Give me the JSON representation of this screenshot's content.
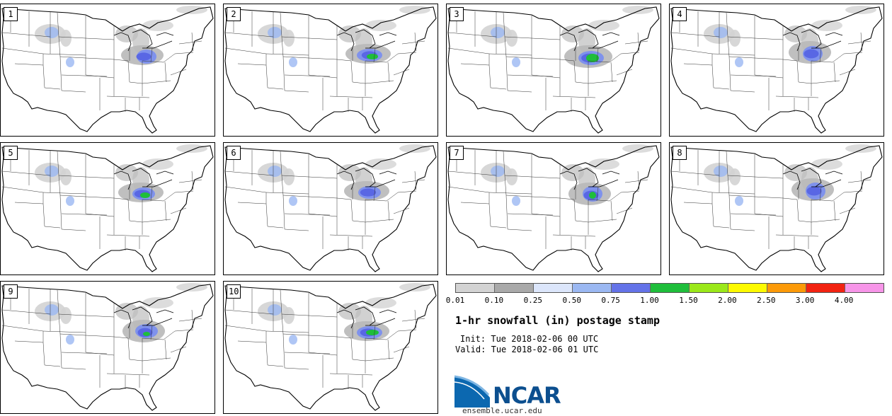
{
  "figure": {
    "title": "1-hr snowfall (in) postage stamp",
    "init_label": "Init:",
    "init_value": "Tue 2018-02-06 00 UTC",
    "valid_label": "Valid:",
    "valid_value": "Tue 2018-02-06 01 UTC",
    "organization": "NCAR",
    "url": "ensemble.ucar.edu"
  },
  "colorbar": {
    "units": "in",
    "tick_labels": [
      "0.01",
      "0.10",
      "0.25",
      "0.50",
      "0.75",
      "1.00",
      "1.50",
      "2.00",
      "2.50",
      "3.00",
      "4.00"
    ],
    "colors": [
      "#d3d3d3",
      "#a9a9a9",
      "#dce6fb",
      "#9bb8f2",
      "#6473e8",
      "#1fbe3b",
      "#9be81a",
      "#fdfa00",
      "#fc9a08",
      "#f22312",
      "#f795e8"
    ]
  },
  "members": [
    {
      "number": "1"
    },
    {
      "number": "2"
    },
    {
      "number": "3"
    },
    {
      "number": "4"
    },
    {
      "number": "5"
    },
    {
      "number": "6"
    },
    {
      "number": "7"
    },
    {
      "number": "8"
    },
    {
      "number": "9"
    },
    {
      "number": "10"
    }
  ]
}
